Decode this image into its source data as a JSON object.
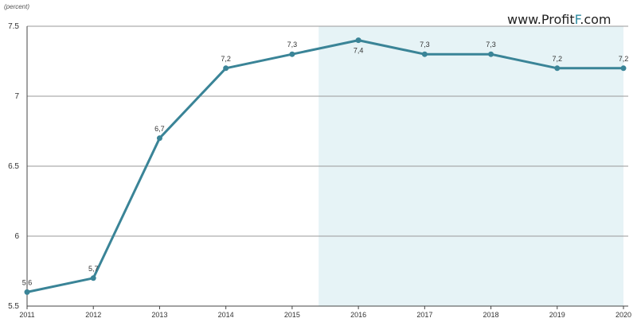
{
  "watermark": {
    "text_a": "www.Profit",
    "text_b": "F",
    "text_c": ".com",
    "accent": "#2f8aa0"
  },
  "chart_data": {
    "type": "line",
    "unit_label": "(percent)",
    "x": [
      "2011",
      "2012",
      "2013",
      "2014",
      "2015",
      "2016",
      "2017",
      "2018",
      "2019",
      "2020"
    ],
    "series": [
      {
        "values": [
          5.6,
          5.7,
          6.7,
          7.2,
          7.3,
          7.4,
          7.3,
          7.3,
          7.2,
          7.2
        ]
      }
    ],
    "data_labels": [
      "5,6",
      "5,7",
      "6,7",
      "7,2",
      "7,3",
      "7,4",
      "7,3",
      "7,3",
      "7,2",
      "7,2"
    ],
    "y_ticks": [
      "5.5",
      "6",
      "6.5",
      "7",
      "7.5"
    ],
    "y_tick_values": [
      5.5,
      6,
      6.5,
      7,
      7.5
    ],
    "ylim": [
      5.5,
      7.5
    ],
    "grid": true,
    "forecast_shade_from": "2015.4",
    "colors": {
      "line": "#3a8497",
      "shade": "#e6f3f6",
      "grid": "#9a9a9a",
      "axis": "#444444"
    }
  }
}
